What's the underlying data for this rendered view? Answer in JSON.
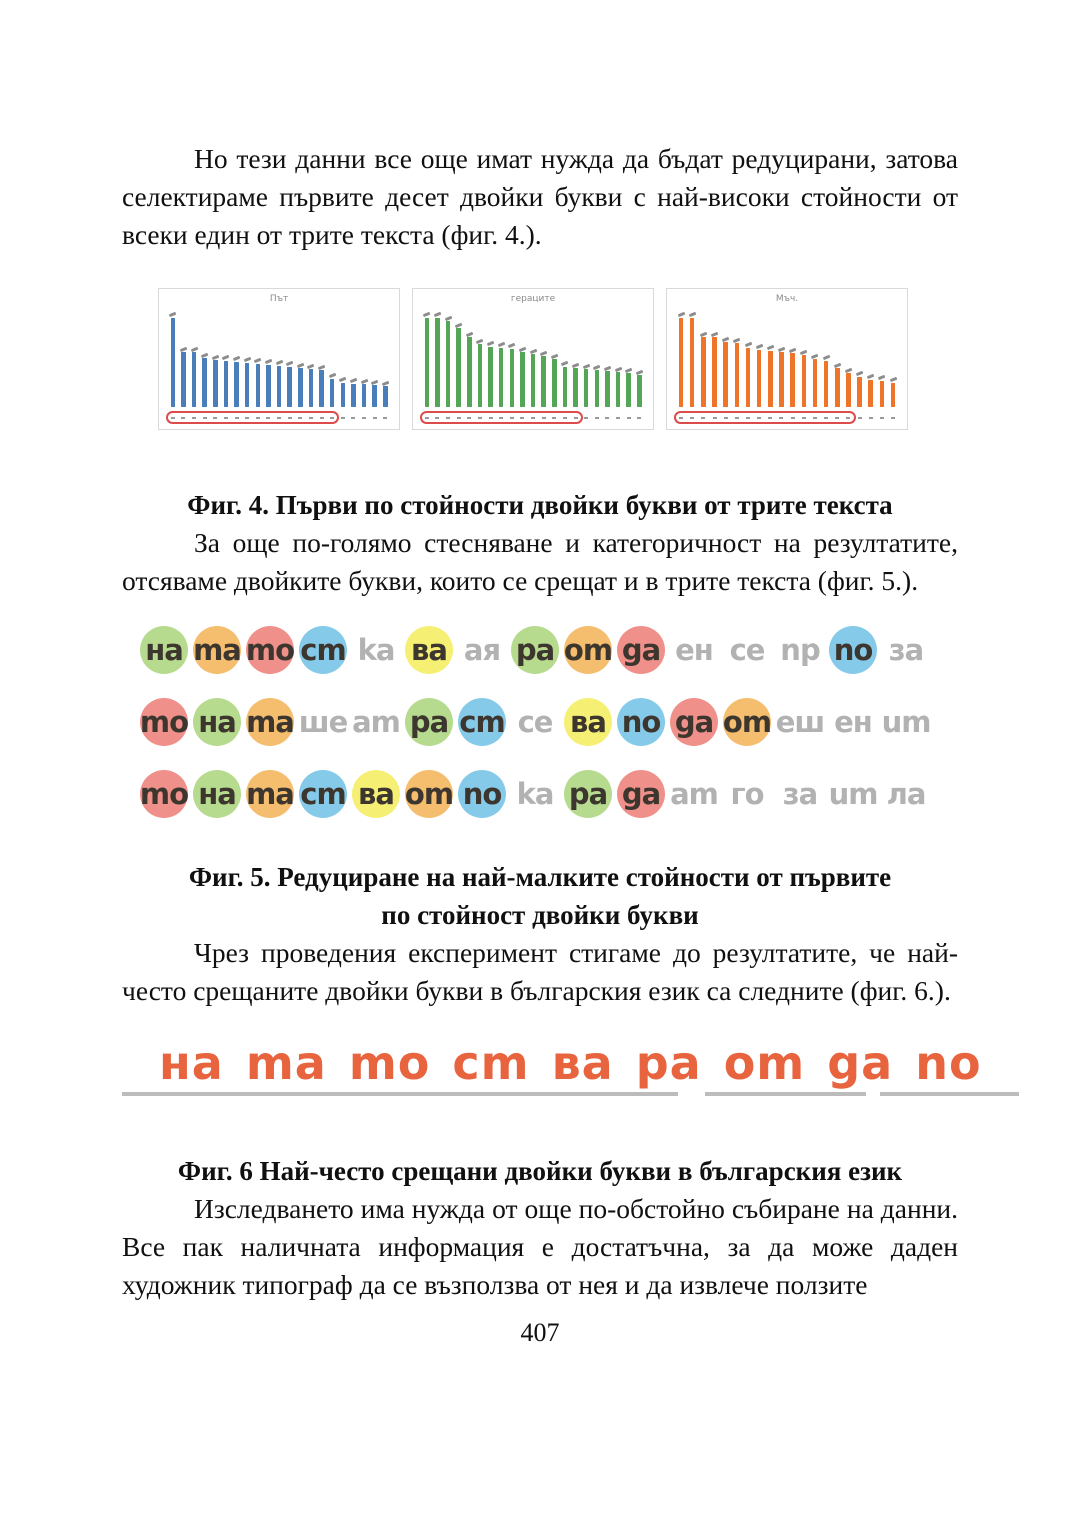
{
  "page": {
    "number": "407"
  },
  "paragraphs": {
    "p1": "Но тези данни все още имат нужда да бъдат редуцирани, затова селектираме първите десет двойки букви с най-високи стойности от всеки един от трите текста (фиг. 4.).",
    "p2": "За още по-голямо стесняване и категоричност на резултатите, отсяваме двойките букви, които се срещат и в трите текста (фиг. 5.).",
    "p3": "Чрез проведения експеримент стигаме до резултатите, че най-често срещаните двойки букви в българския език са следните (фиг. 6.).",
    "p4": "Изследването има нужда от още по-обстойно събиране на данни. Все пак наличната информация е достатъчна, за да може даден художник типограф да се възползва от нея и да извлече ползите"
  },
  "captions": {
    "fig4": "Фиг. 4. Първи по стойности двойки букви от трите текста",
    "fig5_line1": "Фиг.  5. Редуциране на най-малките стойности от първите",
    "fig5_line2": "по стойност двойки букви",
    "fig6": "Фиг. 6 Най-често срещани двойки букви в българския език"
  },
  "chart_data": [
    {
      "type": "bar",
      "title": "Път",
      "bar_color": "#4a7ebb",
      "values_relative": [
        100,
        58,
        58,
        52,
        50,
        49,
        48,
        47,
        46,
        45,
        44,
        43,
        41,
        40,
        39,
        30,
        26,
        25,
        24,
        23,
        22
      ],
      "circled_first_bars": 16,
      "labels": "illegible",
      "annotation": "red ellipse around first 16 x-axis labels"
    },
    {
      "type": "bar",
      "title": "гераците",
      "bar_color": "#55a556",
      "values_relative": [
        95,
        95,
        91,
        84,
        74,
        67,
        64,
        63,
        62,
        58,
        56,
        54,
        51,
        43,
        41,
        40,
        39,
        38,
        37,
        36,
        34
      ],
      "circled_first_bars": 15,
      "labels": "illegible",
      "annotation": "red ellipse around first 15 x-axis labels"
    },
    {
      "type": "bar",
      "title": "Мъч.",
      "bar_color": "#ed7428",
      "values_relative": [
        100,
        98,
        74,
        74,
        69,
        68,
        63,
        61,
        60,
        58,
        57,
        55,
        51,
        49,
        41,
        36,
        32,
        29,
        28,
        26
      ],
      "circled_first_bars": 16,
      "labels": "illegible",
      "annotation": "red ellipse around first 16 x-axis labels"
    }
  ],
  "figures": {
    "fig5": {
      "colors": {
        "green": "#b6db8e",
        "orange": "#f5bd6e",
        "red": "#f0908a",
        "blue": "#85cbe9",
        "yellow": "#f5ef74"
      },
      "text_dark": "#3d362f",
      "text_gray": "#b2b2b2",
      "rows": [
        [
          {
            "pair": "на",
            "display": "на",
            "fill": "green"
          },
          {
            "pair": "та",
            "display": "ma",
            "fill": "orange"
          },
          {
            "pair": "то",
            "display": "mo",
            "fill": "red"
          },
          {
            "pair": "ст",
            "display": "cm",
            "fill": "blue"
          },
          {
            "pair": "ка",
            "display": "ka",
            "fill": "none"
          },
          {
            "pair": "ва",
            "display": "ва",
            "fill": "yellow"
          },
          {
            "pair": "ая",
            "display": "ая",
            "fill": "none"
          },
          {
            "pair": "ра",
            "display": "pa",
            "fill": "green"
          },
          {
            "pair": "от",
            "display": "om",
            "fill": "orange"
          },
          {
            "pair": "да",
            "display": "ga",
            "fill": "red"
          },
          {
            "pair": "ен",
            "display": "ен",
            "fill": "none"
          },
          {
            "pair": "се",
            "display": "ce",
            "fill": "none"
          },
          {
            "pair": "пр",
            "display": "np",
            "fill": "none"
          },
          {
            "pair": "по",
            "display": "no",
            "fill": "blue"
          },
          {
            "pair": "за",
            "display": "за",
            "fill": "none"
          }
        ],
        [
          {
            "pair": "то",
            "display": "mo",
            "fill": "red"
          },
          {
            "pair": "на",
            "display": "на",
            "fill": "green"
          },
          {
            "pair": "та",
            "display": "ma",
            "fill": "orange"
          },
          {
            "pair": "ше",
            "display": "ше",
            "fill": "none"
          },
          {
            "pair": "ат",
            "display": "am",
            "fill": "none"
          },
          {
            "pair": "ра",
            "display": "pa",
            "fill": "green"
          },
          {
            "pair": "ст",
            "display": "cm",
            "fill": "blue"
          },
          {
            "pair": "се",
            "display": "ce",
            "fill": "none"
          },
          {
            "pair": "ва",
            "display": "ва",
            "fill": "yellow"
          },
          {
            "pair": "по",
            "display": "no",
            "fill": "blue"
          },
          {
            "pair": "да",
            "display": "ga",
            "fill": "red"
          },
          {
            "pair": "от",
            "display": "om",
            "fill": "orange"
          },
          {
            "pair": "еш",
            "display": "еш",
            "fill": "none"
          },
          {
            "pair": "ен",
            "display": "ен",
            "fill": "none"
          },
          {
            "pair": "ит",
            "display": "um",
            "fill": "none"
          }
        ],
        [
          {
            "pair": "то",
            "display": "mo",
            "fill": "red"
          },
          {
            "pair": "на",
            "display": "на",
            "fill": "green"
          },
          {
            "pair": "та",
            "display": "ma",
            "fill": "orange"
          },
          {
            "pair": "ст",
            "display": "cm",
            "fill": "blue"
          },
          {
            "pair": "ва",
            "display": "ва",
            "fill": "yellow"
          },
          {
            "pair": "от",
            "display": "om",
            "fill": "orange"
          },
          {
            "pair": "по",
            "display": "no",
            "fill": "blue"
          },
          {
            "pair": "ка",
            "display": "ka",
            "fill": "none"
          },
          {
            "pair": "ра",
            "display": "pa",
            "fill": "green"
          },
          {
            "pair": "да",
            "display": "ga",
            "fill": "red"
          },
          {
            "pair": "ат",
            "display": "am",
            "fill": "none"
          },
          {
            "pair": "го",
            "display": "го",
            "fill": "none"
          },
          {
            "pair": "за",
            "display": "за",
            "fill": "none"
          },
          {
            "pair": "ит",
            "display": "um",
            "fill": "none"
          },
          {
            "pair": "ла",
            "display": "ла",
            "fill": "none"
          }
        ]
      ]
    },
    "fig6": {
      "color": "#e8643e",
      "underline_color": "#bcbcbc",
      "tokens": [
        {
          "pair": "на",
          "display": "на"
        },
        {
          "pair": "та",
          "display": "ma"
        },
        {
          "pair": "то",
          "display": "mo"
        },
        {
          "pair": "ст",
          "display": "cm"
        },
        {
          "pair": "ва",
          "display": "ва"
        },
        {
          "pair": "ра",
          "display": "pa"
        },
        {
          "pair": "от",
          "display": "om"
        },
        {
          "pair": "да",
          "display": "ga"
        },
        {
          "pair": "по",
          "display": "no"
        }
      ],
      "underline_segments": [
        {
          "left_pct": 0,
          "width_pct": 62
        },
        {
          "left_pct": 65,
          "width_pct": 18
        },
        {
          "left_pct": 84.5,
          "width_pct": 15.5
        }
      ]
    }
  }
}
